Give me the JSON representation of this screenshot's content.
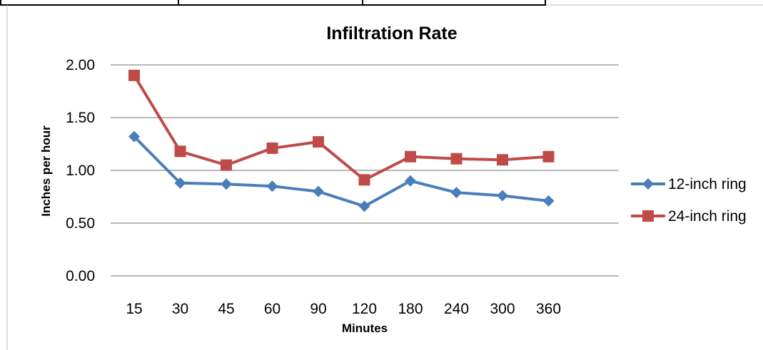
{
  "colors": {
    "series_12": "#4a7ebb",
    "series_24": "#be4b48",
    "grid": "#8c8c8c"
  },
  "chart_data": {
    "type": "line",
    "title": "Infiltration Rate",
    "xlabel": "Minutes",
    "ylabel": "Inches per hour",
    "categories": [
      "15",
      "30",
      "45",
      "60",
      "90",
      "120",
      "180",
      "240",
      "300",
      "360"
    ],
    "ylim": [
      0,
      2
    ],
    "yticks": [
      "0.00",
      "0.50",
      "1.00",
      "1.50",
      "2.00"
    ],
    "grid": true,
    "legend_position": "right",
    "series": [
      {
        "name": "12-inch ring",
        "marker": "diamond",
        "values": [
          1.32,
          0.88,
          0.87,
          0.85,
          0.8,
          0.66,
          0.9,
          0.79,
          0.76,
          0.71
        ]
      },
      {
        "name": "24-inch ring",
        "marker": "square",
        "values": [
          1.9,
          1.18,
          1.05,
          1.21,
          1.27,
          0.91,
          1.13,
          1.11,
          1.1,
          1.13
        ]
      }
    ]
  }
}
